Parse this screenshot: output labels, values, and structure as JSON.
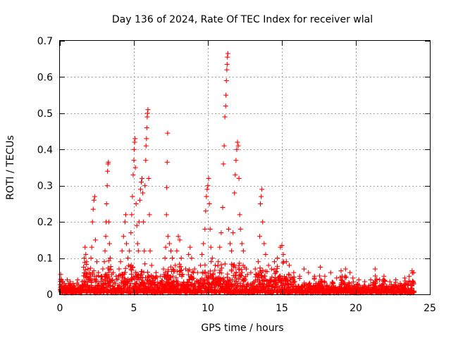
{
  "chart_data": {
    "type": "scatter",
    "title": "Day 136 of 2024, Rate Of TEC Index for receiver wlal",
    "xlabel": "GPS time / hours",
    "ylabel": "ROTI / TECUs",
    "xlim": [
      0,
      25
    ],
    "ylim": [
      0,
      0.7
    ],
    "xticks": [
      0,
      5,
      10,
      15,
      20,
      25
    ],
    "yticks": [
      0,
      0.1,
      0.2,
      0.3,
      0.4,
      0.5,
      0.6,
      0.7
    ],
    "xtick_labels": [
      "0",
      "5",
      "10",
      "15",
      "20",
      "25"
    ],
    "ytick_labels": [
      "0",
      "0.1",
      "0.2",
      "0.3",
      "0.4",
      "0.5",
      "0.6",
      "0.7"
    ],
    "grid": true,
    "marker": "plus",
    "color": "#ff0000",
    "series": [
      {
        "points": [
          [
            0.05,
            0.055
          ],
          [
            0.1,
            0.04
          ],
          [
            0.2,
            0.035
          ],
          [
            0.3,
            0.03
          ],
          [
            0.5,
            0.04
          ],
          [
            0.7,
            0.035
          ],
          [
            0.9,
            0.03
          ],
          [
            1.2,
            0.04
          ],
          [
            1.5,
            0.035
          ],
          [
            1.7,
            0.05
          ],
          [
            1.6,
            0.075
          ],
          [
            1.65,
            0.1
          ],
          [
            1.7,
            0.13
          ],
          [
            1.75,
            0.11
          ],
          [
            1.8,
            0.09
          ],
          [
            1.9,
            0.07
          ],
          [
            2.0,
            0.06
          ],
          [
            2.1,
            0.1
          ],
          [
            2.15,
            0.13
          ],
          [
            2.2,
            0.2
          ],
          [
            2.25,
            0.235
          ],
          [
            2.3,
            0.26
          ],
          [
            2.35,
            0.27
          ],
          [
            2.4,
            0.15
          ],
          [
            2.5,
            0.09
          ],
          [
            2.6,
            0.06
          ],
          [
            2.8,
            0.05
          ],
          [
            2.9,
            0.07
          ],
          [
            3.0,
            0.09
          ],
          [
            3.05,
            0.12
          ],
          [
            3.1,
            0.16
          ],
          [
            3.12,
            0.2
          ],
          [
            3.15,
            0.25
          ],
          [
            3.2,
            0.3
          ],
          [
            3.22,
            0.34
          ],
          [
            3.25,
            0.36
          ],
          [
            3.28,
            0.365
          ],
          [
            3.3,
            0.2
          ],
          [
            3.35,
            0.14
          ],
          [
            3.4,
            0.1
          ],
          [
            3.6,
            0.06
          ],
          [
            3.8,
            0.05
          ],
          [
            4.0,
            0.07
          ],
          [
            4.1,
            0.09
          ],
          [
            4.2,
            0.12
          ],
          [
            4.3,
            0.16
          ],
          [
            4.4,
            0.2
          ],
          [
            4.45,
            0.22
          ],
          [
            4.5,
            0.14
          ],
          [
            4.6,
            0.1
          ],
          [
            4.7,
            0.12
          ],
          [
            4.8,
            0.17
          ],
          [
            4.85,
            0.22
          ],
          [
            4.9,
            0.27
          ],
          [
            4.95,
            0.33
          ],
          [
            5.0,
            0.37
          ],
          [
            5.02,
            0.4
          ],
          [
            5.05,
            0.42
          ],
          [
            5.08,
            0.43
          ],
          [
            5.1,
            0.35
          ],
          [
            5.15,
            0.25
          ],
          [
            5.2,
            0.19
          ],
          [
            5.25,
            0.14
          ],
          [
            5.3,
            0.12
          ],
          [
            5.35,
            0.2
          ],
          [
            5.4,
            0.26
          ],
          [
            5.45,
            0.29
          ],
          [
            5.5,
            0.31
          ],
          [
            5.55,
            0.32
          ],
          [
            5.6,
            0.28
          ],
          [
            5.65,
            0.2
          ],
          [
            5.7,
            0.12
          ],
          [
            5.75,
            0.3
          ],
          [
            5.8,
            0.37
          ],
          [
            5.82,
            0.41
          ],
          [
            5.85,
            0.43
          ],
          [
            5.87,
            0.46
          ],
          [
            5.9,
            0.49
          ],
          [
            5.92,
            0.5
          ],
          [
            5.95,
            0.51
          ],
          [
            6.0,
            0.32
          ],
          [
            6.05,
            0.22
          ],
          [
            6.1,
            0.12
          ],
          [
            6.2,
            0.08
          ],
          [
            6.5,
            0.06
          ],
          [
            6.8,
            0.05
          ],
          [
            7.0,
            0.07
          ],
          [
            7.1,
            0.1
          ],
          [
            7.15,
            0.13
          ],
          [
            7.2,
            0.22
          ],
          [
            7.22,
            0.295
          ],
          [
            7.25,
            0.365
          ],
          [
            7.28,
            0.445
          ],
          [
            7.3,
            0.16
          ],
          [
            7.4,
            0.14
          ],
          [
            7.5,
            0.12
          ],
          [
            7.6,
            0.1
          ],
          [
            7.8,
            0.08
          ],
          [
            7.9,
            0.12
          ],
          [
            8.0,
            0.16
          ],
          [
            8.1,
            0.15
          ],
          [
            8.2,
            0.1
          ],
          [
            8.5,
            0.07
          ],
          [
            8.7,
            0.11
          ],
          [
            8.8,
            0.13
          ],
          [
            8.9,
            0.1
          ],
          [
            9.1,
            0.07
          ],
          [
            9.3,
            0.06
          ],
          [
            9.5,
            0.08
          ],
          [
            9.6,
            0.11
          ],
          [
            9.7,
            0.14
          ],
          [
            9.8,
            0.18
          ],
          [
            9.85,
            0.23
          ],
          [
            9.9,
            0.27
          ],
          [
            9.95,
            0.29
          ],
          [
            10.0,
            0.3
          ],
          [
            10.05,
            0.32
          ],
          [
            10.1,
            0.25
          ],
          [
            10.15,
            0.18
          ],
          [
            10.2,
            0.13
          ],
          [
            10.3,
            0.1
          ],
          [
            10.5,
            0.08
          ],
          [
            10.7,
            0.09
          ],
          [
            10.8,
            0.13
          ],
          [
            10.9,
            0.17
          ],
          [
            11.0,
            0.24
          ],
          [
            11.05,
            0.36
          ],
          [
            11.1,
            0.41
          ],
          [
            11.15,
            0.49
          ],
          [
            11.2,
            0.52
          ],
          [
            11.22,
            0.55
          ],
          [
            11.25,
            0.59
          ],
          [
            11.28,
            0.62
          ],
          [
            11.3,
            0.635
          ],
          [
            11.32,
            0.655
          ],
          [
            11.35,
            0.665
          ],
          [
            11.4,
            0.18
          ],
          [
            11.5,
            0.14
          ],
          [
            11.6,
            0.12
          ],
          [
            11.7,
            0.17
          ],
          [
            11.8,
            0.28
          ],
          [
            11.85,
            0.33
          ],
          [
            11.9,
            0.37
          ],
          [
            11.95,
            0.4
          ],
          [
            12.0,
            0.42
          ],
          [
            12.05,
            0.41
          ],
          [
            12.1,
            0.32
          ],
          [
            12.15,
            0.22
          ],
          [
            12.2,
            0.18
          ],
          [
            12.3,
            0.14
          ],
          [
            12.4,
            0.12
          ],
          [
            12.6,
            0.07
          ],
          [
            12.9,
            0.06
          ],
          [
            13.2,
            0.07
          ],
          [
            13.4,
            0.09
          ],
          [
            13.5,
            0.16
          ],
          [
            13.55,
            0.25
          ],
          [
            13.6,
            0.27
          ],
          [
            13.65,
            0.29
          ],
          [
            13.7,
            0.2
          ],
          [
            13.8,
            0.14
          ],
          [
            13.9,
            0.11
          ],
          [
            14.1,
            0.08
          ],
          [
            14.3,
            0.07
          ],
          [
            14.5,
            0.09
          ],
          [
            14.7,
            0.1
          ],
          [
            14.9,
            0.13
          ],
          [
            15.0,
            0.135
          ],
          [
            15.1,
            0.11
          ],
          [
            15.3,
            0.09
          ],
          [
            15.5,
            0.08
          ],
          [
            15.8,
            0.06
          ],
          [
            16.2,
            0.05
          ],
          [
            16.5,
            0.07
          ],
          [
            16.8,
            0.06
          ],
          [
            17.2,
            0.05
          ],
          [
            17.6,
            0.075
          ],
          [
            17.9,
            0.05
          ],
          [
            18.3,
            0.06
          ],
          [
            18.7,
            0.045
          ],
          [
            19.0,
            0.065
          ],
          [
            19.3,
            0.07
          ],
          [
            19.6,
            0.06
          ],
          [
            19.8,
            0.045
          ],
          [
            20.2,
            0.04
          ],
          [
            20.6,
            0.035
          ],
          [
            21.0,
            0.04
          ],
          [
            21.3,
            0.07
          ],
          [
            21.6,
            0.04
          ],
          [
            21.9,
            0.05
          ],
          [
            22.3,
            0.035
          ],
          [
            22.7,
            0.04
          ],
          [
            23.0,
            0.03
          ],
          [
            23.3,
            0.045
          ],
          [
            23.6,
            0.05
          ],
          [
            23.8,
            0.065
          ],
          [
            23.9,
            0.06
          ]
        ]
      }
    ]
  }
}
